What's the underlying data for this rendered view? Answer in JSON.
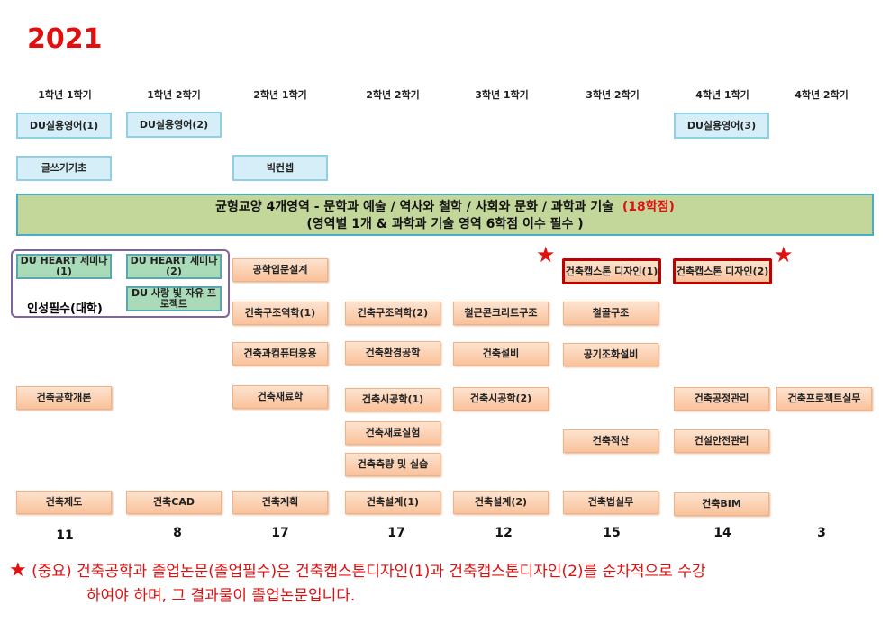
{
  "year": "2021",
  "semesters": [
    "1학년 1학기",
    "1학년 2학기",
    "2학년 1학기",
    "2학년 2학기",
    "3학년 1학기",
    "3학년 2학기",
    "4학년 1학기",
    "4학년 2학기"
  ],
  "courses": {
    "du1": "DU실용영어(1)",
    "du2": "DU실용영어(2)",
    "du3": "DU실용영어(3)",
    "writing": "글쓰기기초",
    "bigconcept": "빅컨셉",
    "heart1": "DU HEART 세미나(1)",
    "heart2": "DU HEART 세미나(2)",
    "project": "DU 사랑 빛 자유 프로젝트",
    "intro_design": "공학입문설계",
    "capstone1": "건축캡스톤 디자인(1)",
    "capstone2": "건축캡스톤 디자인(2)",
    "struct1": "건축구조역학(1)",
    "struct2": "건축구조역학(2)",
    "rc": "철근콘크리트구조",
    "steel": "철골구조",
    "computer": "건축과컴퓨터응용",
    "env": "건축환경공학",
    "equip": "건축설비",
    "hvac": "공기조화설비",
    "intro": "건축공학개론",
    "material": "건축재료학",
    "constr1": "건축시공학(1)",
    "constr2": "건축시공학(2)",
    "schedule": "건축공정관리",
    "proj_practice": "건축프로젝트실무",
    "mat_lab": "건축재료실험",
    "estimate": "건축적산",
    "safety": "건설안전관리",
    "survey": "건축측량 및 실습",
    "drawing": "건축제도",
    "cad": "건축CAD",
    "planning": "건축계획",
    "design1": "건축설계(1)",
    "design2": "건축설계(2)",
    "law": "건축법실무",
    "bim": "건축BIM"
  },
  "group_label": "인성필수(대학)",
  "banner": {
    "line1": "균형교양   4개영역   - 문학과 예술 / 역사와 철학 /  사회와 문화 / 과학과 기술",
    "credits": "(18학점)",
    "line2": "(영역별 1개 & 과학과 기술 영역  6학점 이수 필수 )"
  },
  "totals": [
    "11",
    "8",
    "17",
    "17",
    "12",
    "15",
    "14",
    "3"
  ],
  "note": {
    "star": "★",
    "line1": "(중요) 건축공학과 졸업논문(졸업필수)은 건축캡스톤디자인(1)과 건축캡스톤디자인(2)를 순차적으로 수강",
    "line2": "하여야 하며, 그 결과물이 졸업논문입니다."
  },
  "colors": {
    "accent": "#e01010",
    "banner": "#c4d79b",
    "group_border": "#8064a2"
  }
}
